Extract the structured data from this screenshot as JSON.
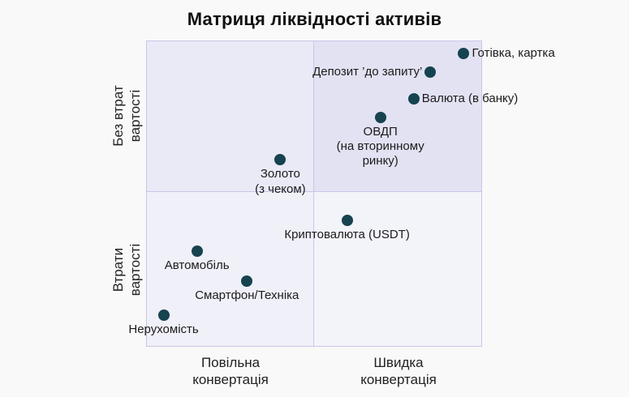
{
  "title": "Матриця ліквідності активів",
  "colors": {
    "background": "#f9f9f9",
    "dot": "#16434f",
    "text": "#1b1b1b",
    "grid_line": "#c7c7e8",
    "quadrant_top_left": "#eaeaf7",
    "quadrant_top_right": "#e2e2f3",
    "quadrant_bottom_left": "#f0f0f9",
    "quadrant_bottom_right": "#f3f3fa"
  },
  "axes": {
    "y_top": "Без втрат\nвартості",
    "y_bottom": "Втрати\nвартості",
    "x_left": "Повільна\nконвертація",
    "x_right": "Швидка\nконвертація"
  },
  "chart_data": {
    "type": "scatter",
    "title": "Матриця ліквідності активів",
    "x_axis": {
      "label_left_half": "Повільна конвертація",
      "label_right_half": "Швидка конвертація",
      "range": [
        0,
        100
      ]
    },
    "y_axis": {
      "label_top_half": "Без втрат вартості",
      "label_bottom_half": "Втрати вартості",
      "range": [
        0,
        100
      ]
    },
    "quadrant_split": {
      "x": 50,
      "y": 50
    },
    "highlighted_quadrant": "top-right",
    "grid": "off",
    "legend": "none",
    "points": [
      {
        "label": "Готівка, картка",
        "x": 95,
        "y": 96,
        "label_position": "right",
        "quadrant": "top-right"
      },
      {
        "label": "Депозит ’до запиту’",
        "x": 85,
        "y": 90,
        "label_position": "left",
        "quadrant": "top-right"
      },
      {
        "label": "Валюта (в банку)",
        "x": 80,
        "y": 81,
        "label_position": "right",
        "quadrant": "top-right"
      },
      {
        "label": "ОВДП\n(на вторинному\nринку)",
        "x": 70,
        "y": 75,
        "label_position": "below",
        "quadrant": "top-right"
      },
      {
        "label": "Золото\n(з чеком)",
        "x": 40,
        "y": 61,
        "label_position": "below",
        "quadrant": "top-left"
      },
      {
        "label": "Криптовалюта (USDT)",
        "x": 60,
        "y": 41,
        "label_position": "below",
        "quadrant": "bottom-right"
      },
      {
        "label": "Автомобіль",
        "x": 15,
        "y": 31,
        "label_position": "below",
        "quadrant": "bottom-left"
      },
      {
        "label": "Смартфон/Техніка",
        "x": 30,
        "y": 21,
        "label_position": "below",
        "quadrant": "bottom-left"
      },
      {
        "label": "Нерухомість",
        "x": 5,
        "y": 10,
        "label_position": "below",
        "quadrant": "bottom-left"
      }
    ]
  }
}
